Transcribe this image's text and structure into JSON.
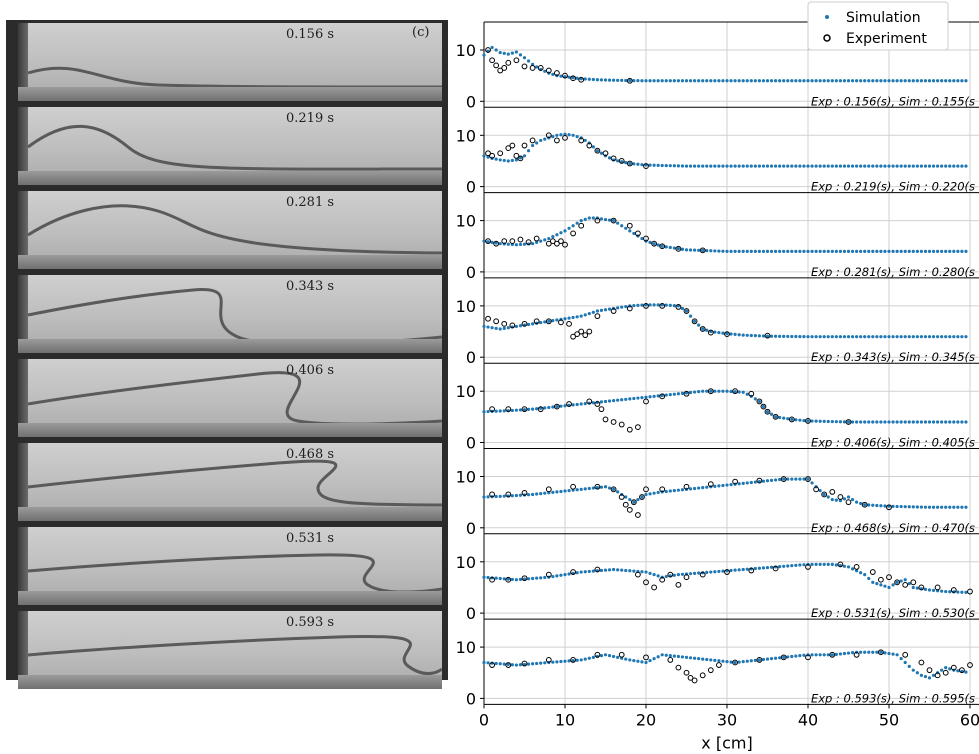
{
  "photo_panel": {
    "panel_label": "(c)",
    "frames": [
      "0.156 s",
      "0.219 s",
      "0.281 s",
      "0.343 s",
      "0.406 s",
      "0.468 s",
      "0.531 s",
      "0.593 s"
    ]
  },
  "chart_data": {
    "type": "scatter",
    "xlabel": "x [cm]",
    "ylabel": "",
    "xlim": [
      0,
      60
    ],
    "ylim": [
      0,
      12
    ],
    "x_ticks": [
      "0",
      "10",
      "20",
      "30",
      "40",
      "50",
      "60"
    ],
    "y_ticks": [
      "0",
      "10"
    ],
    "grid": true,
    "legend_position": "top-right",
    "legend": [
      "Simulation",
      "Experiment"
    ],
    "colors": {
      "simulation": "#1f77b4",
      "experiment": "#000000"
    },
    "panels": [
      {
        "annotation": "Exp : 0.156(s), Sim : 0.155(s",
        "series": [
          {
            "name": "Simulation",
            "x": [
              0,
              1,
              2,
              3,
              4,
              5,
              6,
              7,
              8,
              9,
              10,
              12,
              14,
              16,
              20,
              25,
              30,
              40,
              50,
              60
            ],
            "y": [
              9,
              10.5,
              9.5,
              9.2,
              9.6,
              8.5,
              7.2,
              6.2,
              5.5,
              5,
              4.8,
              4.4,
              4.2,
              4.1,
              4,
              4,
              4,
              4,
              4,
              4
            ]
          },
          {
            "name": "Experiment",
            "x": [
              0.5,
              1,
              1.5,
              2,
              2.5,
              3,
              4,
              5,
              6,
              7,
              8,
              9,
              10,
              11,
              12,
              18
            ],
            "y": [
              10,
              8,
              7,
              6,
              6.5,
              7.5,
              8,
              6.8,
              6.5,
              6.5,
              6,
              5.5,
              5,
              4.5,
              4.2,
              4
            ]
          }
        ]
      },
      {
        "annotation": "Exp : 0.219(s), Sim : 0.220(s",
        "series": [
          {
            "name": "Simulation",
            "x": [
              0,
              1,
              2,
              3,
              4,
              5,
              6,
              7,
              8,
              9,
              10,
              11,
              12,
              13,
              14,
              15,
              16,
              18,
              20,
              25,
              30,
              40,
              50,
              60
            ],
            "y": [
              6,
              5.5,
              5.2,
              5,
              5.2,
              6,
              8,
              9,
              9.5,
              10,
              10.2,
              10,
              9.5,
              8.5,
              7,
              6,
              5.2,
              4.5,
              4.2,
              4,
              4,
              4,
              4,
              4
            ]
          },
          {
            "name": "Experiment",
            "x": [
              0.5,
              1,
              2,
              3,
              3.5,
              4,
              4.5,
              5,
              6,
              8,
              9,
              10,
              12,
              13,
              14,
              15,
              16,
              17,
              18,
              20
            ],
            "y": [
              6.5,
              6,
              6.5,
              7.5,
              8,
              6,
              5.5,
              8,
              9,
              10,
              9,
              9.5,
              9,
              8,
              7,
              6.5,
              5.5,
              5,
              4.5,
              4
            ]
          }
        ]
      },
      {
        "annotation": "Exp : 0.281(s), Sim : 0.280(s",
        "series": [
          {
            "name": "Simulation",
            "x": [
              0,
              2,
              4,
              6,
              8,
              10,
              11,
              12,
              13,
              14,
              15,
              16,
              17,
              18,
              19,
              20,
              22,
              25,
              30,
              40,
              50,
              60
            ],
            "y": [
              6,
              5.5,
              5.3,
              5.5,
              6.5,
              8,
              9,
              10,
              10.5,
              10.5,
              10.2,
              10,
              9,
              8,
              7,
              6,
              5,
              4.3,
              4,
              4,
              4,
              4
            ]
          },
          {
            "name": "Experiment",
            "x": [
              0.5,
              1.5,
              2.5,
              3.5,
              4.5,
              5.5,
              6.5,
              8,
              8.5,
              9,
              9.5,
              10,
              11,
              12,
              14,
              16,
              18,
              19,
              20,
              21,
              22,
              24,
              27
            ],
            "y": [
              6,
              5.5,
              6,
              6,
              6.3,
              5.8,
              6.5,
              5.5,
              6,
              5.5,
              6,
              5.3,
              7.5,
              9,
              10,
              10,
              9,
              7.5,
              6.5,
              5.5,
              5,
              4.5,
              4.2
            ]
          }
        ]
      },
      {
        "annotation": "Exp : 0.343(s), Sim : 0.345(s",
        "series": [
          {
            "name": "Simulation",
            "x": [
              0,
              2,
              4,
              6,
              8,
              10,
              12,
              14,
              16,
              18,
              20,
              22,
              24,
              25,
              26,
              27,
              28,
              30,
              32,
              35,
              40,
              50,
              60
            ],
            "y": [
              6,
              5.5,
              6,
              6.5,
              7,
              7.5,
              8,
              9,
              9.5,
              10,
              10.2,
              10.2,
              10,
              9,
              7,
              5.5,
              5,
              4.6,
              4.3,
              4.1,
              4,
              4,
              4
            ]
          },
          {
            "name": "Experiment",
            "x": [
              0.5,
              1.5,
              2.5,
              3.5,
              5,
              6.5,
              8,
              9.5,
              10.5,
              11,
              11.5,
              12,
              12.5,
              13,
              14,
              16,
              18,
              20,
              22,
              24,
              25,
              26,
              27,
              28,
              30,
              35
            ],
            "y": [
              7.5,
              7,
              6.5,
              6.2,
              6.5,
              7,
              7,
              6.8,
              6.5,
              4,
              4.5,
              5,
              4.3,
              5,
              8,
              9,
              9.5,
              10,
              10,
              9.8,
              9,
              7,
              5.5,
              4.8,
              4.5,
              4.2
            ]
          }
        ]
      },
      {
        "annotation": "Exp : 0.406(s), Sim : 0.405(s",
        "series": [
          {
            "name": "Simulation",
            "x": [
              0,
              3,
              6,
              9,
              12,
              15,
              18,
              21,
              24,
              27,
              30,
              32,
              33,
              34,
              35,
              36,
              38,
              40,
              45,
              50,
              60
            ],
            "y": [
              6,
              6.2,
              6.5,
              7,
              7.5,
              8,
              8.5,
              9,
              9.5,
              10,
              10,
              9.8,
              9,
              8,
              6,
              5,
              4.5,
              4.2,
              4,
              4,
              4
            ]
          },
          {
            "name": "Experiment",
            "x": [
              1,
              3,
              5,
              7,
              9,
              10.5,
              13,
              14,
              14.5,
              15,
              16,
              17,
              18,
              19,
              20,
              22,
              25,
              28,
              31,
              33,
              34,
              34.5,
              35,
              36,
              38,
              40,
              45
            ],
            "y": [
              6.5,
              6.5,
              6.5,
              6.5,
              7,
              7.5,
              8,
              7.5,
              6.5,
              4.5,
              4,
              3.5,
              2.5,
              3,
              8,
              9,
              9.5,
              10,
              10,
              9.5,
              8,
              7,
              6,
              5,
              4.5,
              4.2,
              4
            ]
          }
        ]
      },
      {
        "annotation": "Exp : 0.468(s), Sim : 0.470(s",
        "series": [
          {
            "name": "Simulation",
            "x": [
              0,
              3,
              6,
              9,
              12,
              15,
              16,
              17,
              18,
              18.5,
              19,
              20,
              22,
              25,
              28,
              31,
              34,
              37,
              40,
              41,
              42,
              43,
              44,
              45,
              46,
              47,
              50,
              55,
              60
            ],
            "y": [
              6,
              6.2,
              6.5,
              7,
              7.5,
              8,
              7.5,
              6.5,
              5.5,
              5,
              5.5,
              6.5,
              7,
              7.5,
              8,
              8.5,
              9,
              9.5,
              9.5,
              8,
              6.5,
              5.5,
              5.3,
              6,
              5,
              4.5,
              4.2,
              4,
              4
            ]
          },
          {
            "name": "Experiment",
            "x": [
              1,
              3,
              5,
              8,
              11,
              14,
              16,
              17,
              17.5,
              18,
              18.5,
              19,
              19.5,
              20,
              22,
              25,
              28,
              31,
              34,
              37,
              40,
              41,
              42,
              43,
              44,
              45,
              47,
              50
            ],
            "y": [
              6.5,
              6.5,
              6.8,
              7.5,
              8,
              8,
              7.5,
              6,
              4.5,
              3.5,
              5,
              2.5,
              6,
              7.5,
              7.5,
              8,
              8.5,
              9,
              9.2,
              9.5,
              9.5,
              7.5,
              6.5,
              7,
              6,
              5,
              4.5,
              4
            ]
          }
        ]
      },
      {
        "annotation": "Exp : 0.531(s), Sim : 0.530(s",
        "series": [
          {
            "name": "Simulation",
            "x": [
              0,
              4,
              8,
              12,
              16,
              20,
              22,
              24,
              28,
              32,
              36,
              40,
              43,
              45,
              47,
              48,
              49,
              50,
              51,
              52,
              53,
              55,
              57,
              60
            ],
            "y": [
              7,
              6.5,
              7,
              8,
              8.5,
              8,
              7,
              7.5,
              8,
              8.5,
              9,
              9.5,
              9.5,
              9,
              7.5,
              6,
              5.5,
              5,
              6,
              6.5,
              5,
              4.5,
              4.2,
              4
            ]
          },
          {
            "name": "Experiment",
            "x": [
              1,
              3,
              5,
              8,
              11,
              14,
              19,
              20,
              21,
              22,
              23,
              24,
              25,
              27,
              30,
              33,
              36,
              40,
              44,
              46,
              48,
              49,
              50,
              51,
              52,
              53,
              54,
              56,
              58,
              60
            ],
            "y": [
              6.5,
              6.5,
              6.8,
              7.5,
              8,
              8.5,
              7.5,
              6,
              5,
              6.5,
              7.5,
              5.5,
              7,
              7.5,
              8,
              8.3,
              8.7,
              9,
              9.5,
              9,
              8,
              6.5,
              7,
              6,
              5.5,
              6,
              5,
              5,
              4.5,
              4.2
            ]
          }
        ]
      },
      {
        "annotation": "Exp : 0.593(s), Sim : 0.595(s",
        "series": [
          {
            "name": "Simulation",
            "x": [
              0,
              4,
              8,
              12,
              15,
              18,
              20,
              22,
              25,
              28,
              31,
              34,
              37,
              40,
              43,
              46,
              49,
              51,
              52,
              53,
              54,
              55,
              56,
              57,
              58,
              60
            ],
            "y": [
              7,
              6.5,
              7,
              7.5,
              8.5,
              7.5,
              7,
              8.5,
              8,
              7.5,
              7,
              7.5,
              8,
              8.5,
              8.5,
              9,
              9,
              8.5,
              7,
              5.5,
              4.5,
              4,
              5,
              6,
              5.5,
              5
            ]
          },
          {
            "name": "Experiment",
            "x": [
              1,
              3,
              5,
              8,
              11,
              14,
              17,
              20,
              23,
              24,
              25,
              25.5,
              26,
              27,
              28,
              29,
              31,
              34,
              37,
              40,
              43,
              46,
              49,
              52,
              54,
              55,
              56,
              57,
              58,
              59,
              60
            ],
            "y": [
              6.5,
              6.5,
              6.8,
              7.5,
              7.5,
              8.5,
              8.5,
              8,
              7.5,
              6,
              5,
              4,
              3.5,
              4.5,
              5.5,
              6.5,
              7,
              7.5,
              8,
              8,
              8.5,
              8.5,
              9,
              8.5,
              7,
              5.5,
              4.5,
              5,
              6,
              5.5,
              6.5
            ]
          }
        ]
      }
    ]
  }
}
